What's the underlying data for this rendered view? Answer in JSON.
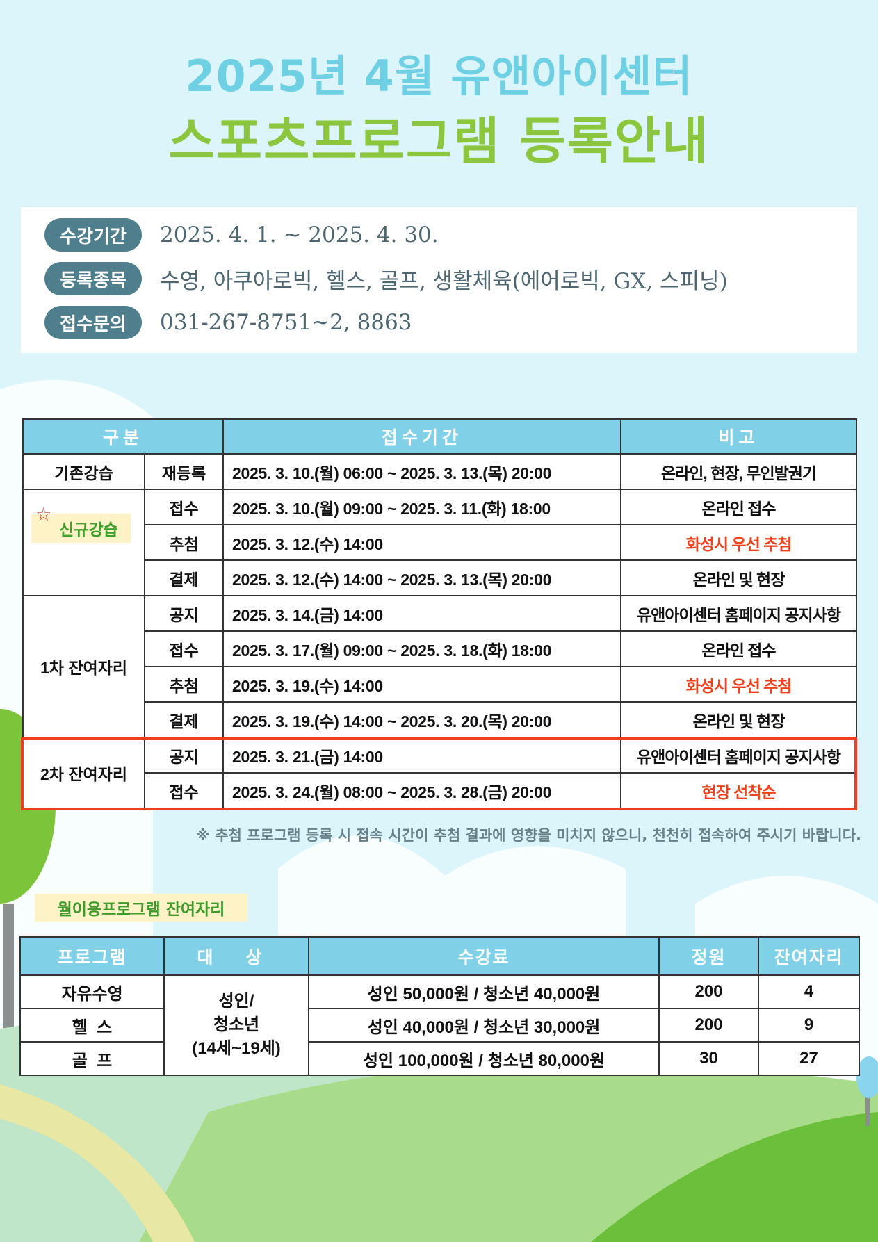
{
  "header": {
    "line1": "2025년 4월 유앤아이센터",
    "line2": "스포츠프로그램 등록안내"
  },
  "info": [
    {
      "label": "수강기간",
      "value": "2025. 4. 1. ~ 2025. 4. 30."
    },
    {
      "label": "등록종목",
      "value": "수영, 아쿠아로빅, 헬스, 골프, 생활체육(에어로빅, GX, 스피닝)"
    },
    {
      "label": "접수문의",
      "value": "031-267-8751~2, 8863"
    }
  ],
  "schedule": {
    "headers": [
      "구분",
      "접수기간",
      "비고"
    ],
    "groups": {
      "existing": "기존강습",
      "new": "신규강습",
      "first": "1차 잔여자리",
      "second": "2차 잔여자리"
    },
    "rows": [
      {
        "step": "재등록",
        "period": "2025. 3. 10.(월) 06:00 ~ 2025. 3. 13.(목) 20:00",
        "note": "온라인, 현장, 무인발권기"
      },
      {
        "step": "접수",
        "period": "2025. 3. 10.(월) 09:00 ~ 2025. 3. 11.(화) 18:00",
        "note": "온라인 접수"
      },
      {
        "step": "추첨",
        "period": "2025. 3. 12.(수) 14:00",
        "note": "화성시 우선 추첨"
      },
      {
        "step": "결제",
        "period": "2025. 3. 12.(수) 14:00 ~ 2025. 3. 13.(목) 20:00",
        "note": "온라인 및 현장"
      },
      {
        "step": "공지",
        "period": "2025. 3. 14.(금) 14:00",
        "note": "유앤아이센터 홈페이지 공지사항"
      },
      {
        "step": "접수",
        "period": "2025. 3. 17.(월) 09:00 ~ 2025. 3. 18.(화) 18:00",
        "note": "온라인 접수"
      },
      {
        "step": "추첨",
        "period": "2025. 3. 19.(수) 14:00",
        "note": "화성시 우선 추첨"
      },
      {
        "step": "결제",
        "period": "2025. 3. 19.(수) 14:00 ~ 2025. 3. 20.(목) 20:00",
        "note": "온라인 및 현장"
      },
      {
        "step": "공지",
        "period": "2025. 3. 21.(금) 14:00",
        "note": "유앤아이센터 홈페이지 공지사항"
      },
      {
        "step": "접수",
        "period": "2025. 3. 24.(월) 08:00 ~ 2025. 3. 28.(금) 20:00",
        "note": "현장 선착순"
      }
    ],
    "footnote": "※ 추첨 프로그램 등록 시 접속 시간이 추첨 결과에 영향을 미치지 않으니, 천천히 접속하여 주시기 바랍니다."
  },
  "monthly": {
    "label": "월이용프로그램 잔여자리",
    "headers": [
      "프로그램",
      "대  상",
      "수강료",
      "정원",
      "잔여자리"
    ],
    "target": [
      "성인/",
      "청소년",
      "(14세~19세)"
    ],
    "rows": [
      {
        "program": "자유수영",
        "fee": "성인 50,000원 / 청소년 40,000원",
        "capacity": "200",
        "remaining": "4"
      },
      {
        "program": "헬  스",
        "fee": "성인 40,000원 / 청소년 30,000원",
        "capacity": "200",
        "remaining": "9"
      },
      {
        "program": "골  프",
        "fee": "성인 100,000원 / 청소년 80,000원",
        "capacity": "30",
        "remaining": "27"
      }
    ]
  },
  "colors": {
    "accent_red": "#f0401c",
    "header_blue": "#80d1e8",
    "title_blue": "#6fd0e4",
    "title_green": "#8cc63f",
    "pill": "#4f7f8c"
  }
}
